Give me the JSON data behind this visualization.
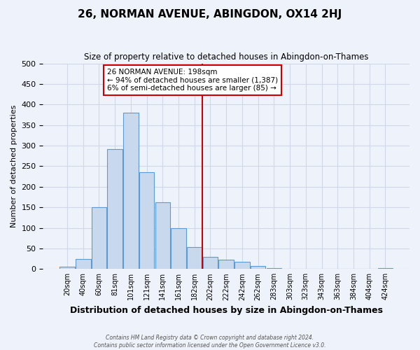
{
  "title": "26, NORMAN AVENUE, ABINGDON, OX14 2HJ",
  "subtitle": "Size of property relative to detached houses in Abingdon-on-Thames",
  "xlabel": "Distribution of detached houses by size in Abingdon-on-Thames",
  "ylabel": "Number of detached properties",
  "bar_labels": [
    "20sqm",
    "40sqm",
    "60sqm",
    "81sqm",
    "101sqm",
    "121sqm",
    "141sqm",
    "161sqm",
    "182sqm",
    "202sqm",
    "222sqm",
    "242sqm",
    "262sqm",
    "283sqm",
    "303sqm",
    "323sqm",
    "343sqm",
    "363sqm",
    "384sqm",
    "404sqm",
    "424sqm"
  ],
  "bar_values": [
    5,
    25,
    150,
    292,
    380,
    236,
    163,
    99,
    53,
    30,
    22,
    17,
    8,
    3,
    1,
    1,
    0,
    0,
    0,
    0,
    2
  ],
  "bar_color": "#c9d9ed",
  "bar_edge_color": "#5b9bd5",
  "grid_color": "#d0d8e8",
  "background_color": "#eef2fa",
  "vline_color": "#cc0000",
  "annotation_title": "26 NORMAN AVENUE: 198sqm",
  "annotation_line1": "← 94% of detached houses are smaller (1,387)",
  "annotation_line2": "6% of semi-detached houses are larger (85) →",
  "annotation_box_color": "#ffffff",
  "annotation_border_color": "#cc0000",
  "ylim": [
    0,
    500
  ],
  "yticks": [
    0,
    50,
    100,
    150,
    200,
    250,
    300,
    350,
    400,
    450,
    500
  ],
  "footer_line1": "Contains HM Land Registry data © Crown copyright and database right 2024.",
  "footer_line2": "Contains public sector information licensed under the Open Government Licence v3.0."
}
